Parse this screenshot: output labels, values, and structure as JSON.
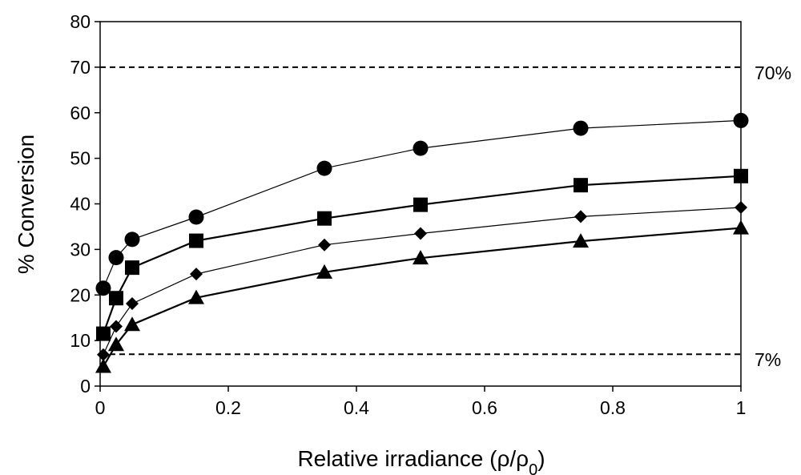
{
  "chart_data": {
    "type": "line",
    "xlabel": "Relative irradiance (ρ/ρ",
    "xlabel_sub": "0",
    "xlabel_end": ")",
    "ylabel": "% Conversion",
    "xlim": [
      0,
      1
    ],
    "ylim": [
      0,
      80
    ],
    "x_ticks": [
      0,
      0.2,
      0.4,
      0.6,
      0.8,
      1
    ],
    "x_tick_labels": [
      "0",
      "0.2",
      "0.4",
      "0.6",
      "0.8",
      "1"
    ],
    "y_ticks": [
      0,
      10,
      20,
      30,
      40,
      50,
      60,
      70,
      80
    ],
    "y_tick_labels": [
      "0",
      "10",
      "20",
      "30",
      "40",
      "50",
      "60",
      "70",
      "80"
    ],
    "grid": false,
    "reference_lines": [
      {
        "y": 70,
        "label": "70%",
        "style": "dashed"
      },
      {
        "y": 7,
        "label": "7%",
        "style": "dashed"
      }
    ],
    "x": [
      0.005,
      0.025,
      0.05,
      0.15,
      0.35,
      0.5,
      0.75,
      1.0
    ],
    "series": [
      {
        "marker": "circle",
        "values": [
          21.5,
          28.2,
          32.2,
          37.1,
          47.8,
          52.2,
          56.6,
          58.3
        ]
      },
      {
        "marker": "square",
        "values": [
          11.5,
          19.3,
          26.0,
          31.9,
          36.8,
          39.8,
          44.1,
          46.1
        ]
      },
      {
        "marker": "diamond",
        "values": [
          6.9,
          13.1,
          18.1,
          24.6,
          31.0,
          33.5,
          37.2,
          39.2
        ]
      },
      {
        "marker": "triangle",
        "values": [
          4.3,
          9.1,
          13.5,
          19.4,
          25.0,
          28.1,
          31.8,
          34.7
        ]
      }
    ]
  }
}
